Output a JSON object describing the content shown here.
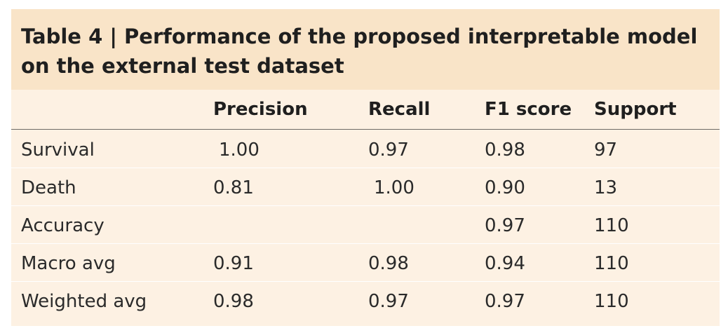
{
  "table": {
    "title": "Table 4 | Performance of the proposed interpretable model on the external test dataset",
    "columns": [
      "",
      "Precision",
      "Recall",
      "F1 score",
      "Support"
    ],
    "rows": [
      {
        "label": "Survival",
        "precision": "1.00",
        "recall": "0.97",
        "f1": "0.98",
        "support": "97"
      },
      {
        "label": "Death",
        "precision": "0.81",
        "recall": "1.00",
        "f1": "0.90",
        "support": "13"
      },
      {
        "label": "Accuracy",
        "precision": "",
        "recall": "",
        "f1": "0.97",
        "support": "110"
      },
      {
        "label": "Macro avg",
        "precision": "0.91",
        "recall": "0.98",
        "f1": "0.94",
        "support": "110"
      },
      {
        "label": "Weighted avg",
        "precision": "0.98",
        "recall": "0.97",
        "f1": "0.97",
        "support": "110"
      }
    ]
  }
}
